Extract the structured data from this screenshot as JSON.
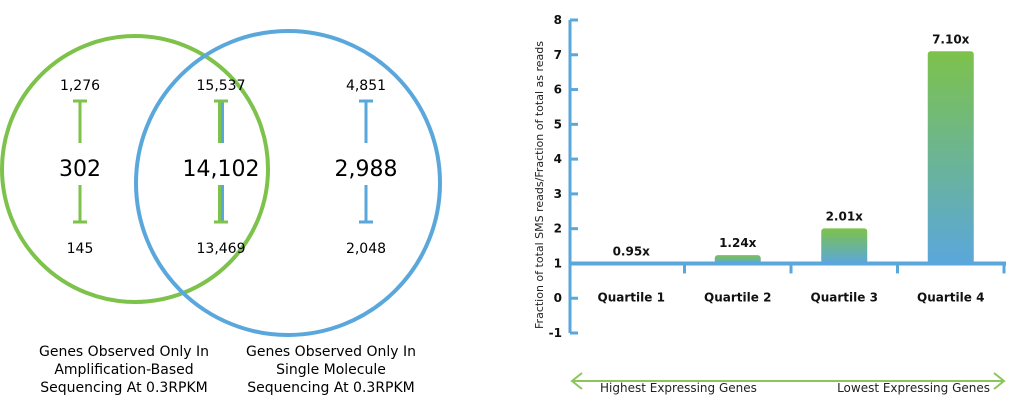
{
  "colors": {
    "green": "#7dc24b",
    "blue": "#5aa7dc",
    "axis": "#5aa7dc",
    "arrow": "#8cc65a"
  },
  "venn": {
    "left_only": {
      "upper": "1,276",
      "count": "302",
      "lower": "145"
    },
    "overlap": {
      "upper": "15,537",
      "count": "14,102",
      "lower": "13,469"
    },
    "right_only": {
      "upper": "4,851",
      "count": "2,988",
      "lower": "2,048"
    },
    "label_left": [
      "Genes Observed Only In",
      "Amplification-Based",
      "Sequencing At 0.3RPKM"
    ],
    "label_right": [
      "Genes Observed Only In",
      "Single Molecule",
      "Sequencing At 0.3RPKM"
    ]
  },
  "chart_data": {
    "type": "bar",
    "categories": [
      "Quartile 1",
      "Quartile 2",
      "Quartile 3",
      "Quartile 4"
    ],
    "values": [
      0.95,
      1.24,
      2.01,
      7.1
    ],
    "data_labels": [
      "0.95x",
      "1.24x",
      "2.01x",
      "7.10x"
    ],
    "ylabel": "Fraction of total SMS reads/Fraction of total as reads",
    "ylim": [
      -1,
      8
    ],
    "yticks": [
      -1,
      0,
      1,
      2,
      3,
      4,
      5,
      6,
      7,
      8
    ],
    "baseline": 1,
    "grid": false,
    "arrow_left_label": "Highest Expressing Genes",
    "arrow_right_label": "Lowest Expressing Genes"
  }
}
